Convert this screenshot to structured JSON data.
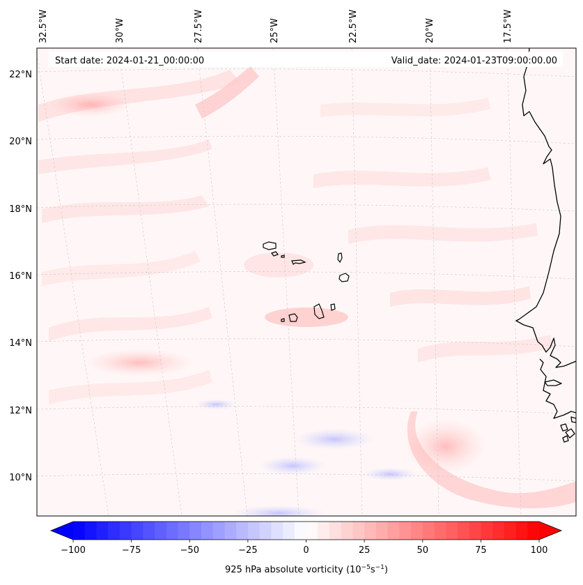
{
  "map": {
    "start_date_label": "Start date: 2024-01-21_00:00:00",
    "valid_date_label": "Valid_date: 2024-01-23T09:00:00.00",
    "longitude_labels": [
      "32.5°W",
      "30°W",
      "27.5°W",
      "25°W",
      "22.5°W",
      "20°W",
      "17.5°W"
    ],
    "latitude_labels": [
      "22°N",
      "20°N",
      "18°N",
      "16°N",
      "14°N",
      "12°N",
      "10°N"
    ],
    "extent": {
      "lon_min": -33.0,
      "lon_max": -16.0,
      "lat_min": 8.8,
      "lat_max": 22.8
    },
    "features": [
      "Cape Verde Islands",
      "West African coastline (Mauritania, Senegal, Gambia, Guinea-Bissau, Guinea)"
    ],
    "colors": {
      "negative": "#0000ff",
      "zero": "#ffffff",
      "positive": "#ff0000",
      "coast": "#000000",
      "gridline": "#bbbbbb"
    }
  },
  "colorbar": {
    "label_main": "925 hPa absolute vorticity (10",
    "label_exp1": "−5",
    "label_mid": "s",
    "label_exp2": "−1",
    "label_end": ")",
    "tick_labels": [
      "−100",
      "−75",
      "−50",
      "−25",
      "0",
      "25",
      "50",
      "75",
      "100"
    ],
    "min": -100,
    "max": 100,
    "extend": "both"
  },
  "chart_data": {
    "type": "heatmap",
    "title": "",
    "variable": "925 hPa absolute vorticity",
    "units": "10^-5 s^-1",
    "start_date": "2024-01-21_00:00:00",
    "valid_date": "2024-01-23T09:00:00.00",
    "value_range": [
      -100,
      100
    ],
    "colormap": "bwr",
    "longitude_ticks": [
      "32.5°W",
      "30°W",
      "27.5°W",
      "25°W",
      "22.5°W",
      "20°W",
      "17.5°W"
    ],
    "latitude_ticks": [
      "22°N",
      "20°N",
      "18°N",
      "16°N",
      "14°N",
      "12°N",
      "10°N"
    ]
  }
}
